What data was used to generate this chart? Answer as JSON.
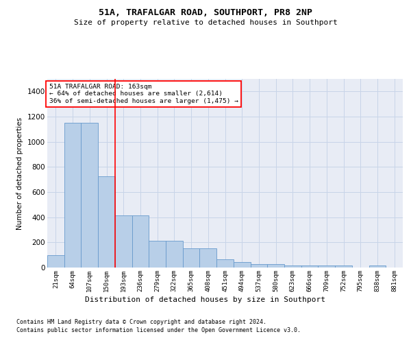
{
  "title": "51A, TRAFALGAR ROAD, SOUTHPORT, PR8 2NP",
  "subtitle": "Size of property relative to detached houses in Southport",
  "xlabel": "Distribution of detached houses by size in Southport",
  "ylabel": "Number of detached properties",
  "footnote1": "Contains HM Land Registry data © Crown copyright and database right 2024.",
  "footnote2": "Contains public sector information licensed under the Open Government Licence v3.0.",
  "bin_labels": [
    "21sqm",
    "64sqm",
    "107sqm",
    "150sqm",
    "193sqm",
    "236sqm",
    "279sqm",
    "322sqm",
    "365sqm",
    "408sqm",
    "451sqm",
    "494sqm",
    "537sqm",
    "580sqm",
    "623sqm",
    "666sqm",
    "709sqm",
    "752sqm",
    "795sqm",
    "838sqm",
    "881sqm"
  ],
  "bar_values": [
    100,
    1150,
    1150,
    725,
    415,
    415,
    215,
    215,
    155,
    155,
    65,
    45,
    28,
    28,
    18,
    18,
    18,
    18,
    0,
    18,
    0
  ],
  "bar_color": "#b8cfe8",
  "bar_edge_color": "#6699cc",
  "red_line_x": 3.5,
  "annotation_line1": "51A TRAFALGAR ROAD: 163sqm",
  "annotation_line2": "← 64% of detached houses are smaller (2,614)",
  "annotation_line3": "36% of semi-detached houses are larger (1,475) →",
  "ylim": [
    0,
    1500
  ],
  "yticks": [
    0,
    200,
    400,
    600,
    800,
    1000,
    1200,
    1400
  ],
  "grid_color": "#c8d4e8",
  "background_color": "#e8ecf5"
}
